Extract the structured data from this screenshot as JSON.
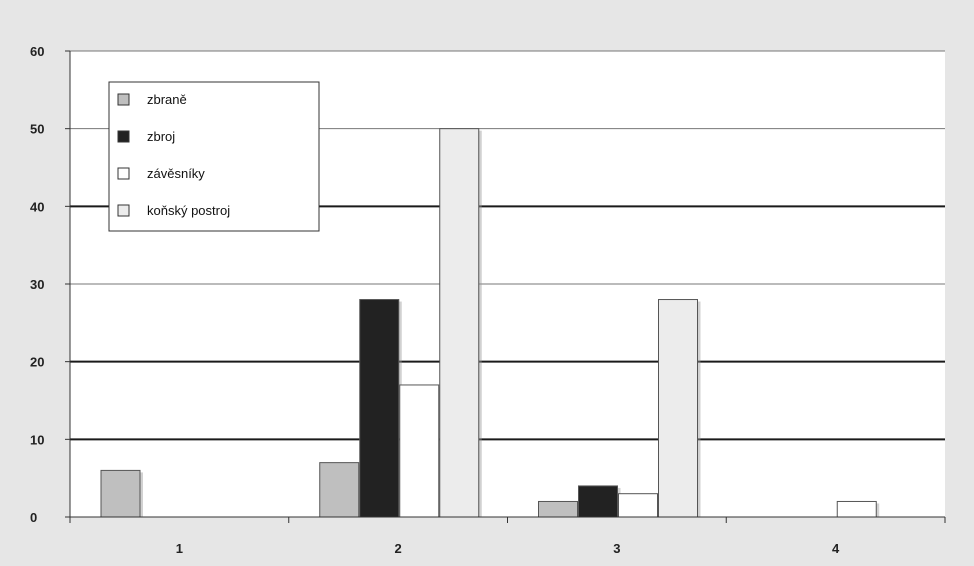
{
  "chart_data": {
    "type": "bar",
    "title": "",
    "xlabel": "",
    "ylabel": "",
    "categories": [
      "1",
      "2",
      "3",
      "4"
    ],
    "series": [
      {
        "name": "zbraně",
        "values": [
          6,
          7,
          2,
          0
        ],
        "color": "#bfbfbf"
      },
      {
        "name": "zbroj",
        "values": [
          0,
          28,
          4,
          0
        ],
        "color": "#222222"
      },
      {
        "name": "závěsníky",
        "values": [
          0,
          17,
          3,
          2
        ],
        "color": "#ffffff"
      },
      {
        "name": "koňský postroj",
        "values": [
          0,
          50,
          28,
          0
        ],
        "color": "#ececec"
      }
    ],
    "ylim": [
      0,
      60
    ],
    "yticks": [
      "0",
      "10",
      "20",
      "30",
      "40",
      "50",
      "60"
    ],
    "grid": true,
    "legend_position": "top-left",
    "colors": {
      "background": "#e6e6e6",
      "plot_background": "#ffffff",
      "bar_outline": "#555555",
      "grid_major": "#1a1a1a",
      "grid_minor": "#777777"
    }
  }
}
